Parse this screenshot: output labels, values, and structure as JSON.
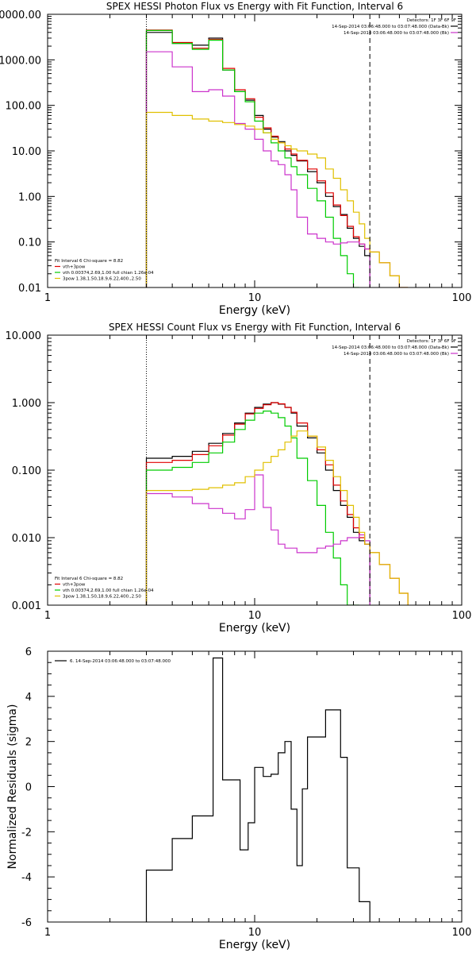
{
  "chart_data": [
    {
      "type": "line",
      "title": "SPEX HESSI Photon Flux vs Energy with Fit Function, Interval 6",
      "xlabel": "Energy (keV)",
      "ylabel": "",
      "xscale": "log",
      "yscale": "log",
      "xlim": [
        1,
        100
      ],
      "ylim": [
        0.01,
        10000
      ],
      "grid": false,
      "xticks": [
        "1",
        "10",
        "100"
      ],
      "yticks": [
        "10000.00",
        "1000.00",
        "100.00",
        "10.00",
        "1.00",
        "0.10",
        "0.01"
      ],
      "vlines": [
        {
          "x": 3.0,
          "style": "dotted"
        },
        {
          "x": 36.0,
          "style": "dashed"
        }
      ],
      "legend_top": {
        "position": "top-right",
        "header": "Detectors: 1F 3F 6F 9F",
        "entries": [
          {
            "text": "14-Sep-2014 03:06:48.000 to 03:07:48.000 (Data-Bk)",
            "color": "#000000"
          },
          {
            "text": "14-Sep-2014 03:06:48.000 to 03:07:48.000 (Bk)",
            "color": "#cc33cc"
          }
        ]
      },
      "legend_bottom": {
        "position": "bottom-left",
        "header": "Fit Interval 6   Chi-square = 8.82",
        "entries": [
          {
            "text": "vth+3pow",
            "color": "#e00000"
          },
          {
            "text": "vth 0.00374,2.69,1.00  full chian 1.26e-04",
            "color": "#00cc00"
          },
          {
            "text": "3pow 1.38,1.50,18.9,6.22,400.,2.50",
            "color": "#e0c000"
          }
        ]
      },
      "series": [
        {
          "color": "#000000",
          "edges": [
            3,
            4,
            5,
            6,
            7,
            8,
            9,
            10,
            11,
            12,
            13,
            14,
            15,
            16,
            18,
            20,
            22,
            24,
            26,
            28,
            30,
            32,
            34,
            36
          ],
          "values": [
            4000,
            2300,
            2100,
            3000,
            600,
            200,
            130,
            60,
            30,
            20,
            16,
            10,
            8,
            6,
            3.5,
            2.0,
            1.0,
            0.6,
            0.4,
            0.2,
            0.12,
            0.08,
            0.05
          ]
        },
        {
          "color": "#e00000",
          "edges": [
            3,
            4,
            5,
            6,
            7,
            8,
            9,
            10,
            11,
            12,
            13,
            14,
            15,
            16,
            18,
            20,
            22,
            24,
            26,
            28,
            30,
            32,
            34,
            36,
            40,
            45,
            50,
            55
          ],
          "values": [
            4500,
            2400,
            1800,
            2800,
            650,
            220,
            140,
            55,
            32,
            21,
            15,
            11,
            8.5,
            6.2,
            4,
            2.2,
            1.2,
            0.65,
            0.38,
            0.22,
            0.13,
            0.09,
            0.07,
            0.06,
            0.035,
            0.018,
            0.01
          ]
        },
        {
          "color": "#00cc00",
          "edges": [
            3,
            4,
            5,
            6,
            7,
            8,
            9,
            10,
            11,
            12,
            13,
            14,
            15,
            16,
            18,
            20,
            22,
            24,
            26,
            28,
            30,
            32
          ],
          "values": [
            4400,
            2300,
            1700,
            2700,
            600,
            200,
            120,
            45,
            25,
            15,
            10,
            7,
            4.5,
            3,
            1.5,
            0.8,
            0.35,
            0.12,
            0.05,
            0.02,
            0.01
          ]
        },
        {
          "color": "#cc33cc",
          "edges": [
            3,
            4,
            5,
            6,
            7,
            8,
            9,
            10,
            11,
            12,
            13,
            14,
            15,
            16,
            18,
            20,
            22,
            24,
            26,
            28,
            30,
            32,
            34,
            36
          ],
          "values": [
            1500,
            700,
            200,
            220,
            160,
            40,
            30,
            18,
            10,
            6,
            5,
            3,
            1.4,
            0.35,
            0.15,
            0.12,
            0.1,
            0.09,
            0.095,
            0.1,
            0.1,
            0.09,
            0.07
          ]
        },
        {
          "color": "#e0c000",
          "edges": [
            3,
            4,
            5,
            6,
            7,
            8,
            9,
            10,
            11,
            12,
            13,
            14,
            15,
            16,
            18,
            20,
            22,
            24,
            26,
            28,
            30,
            32,
            34,
            36,
            40,
            45,
            50,
            55
          ],
          "values": [
            70,
            60,
            50,
            45,
            42,
            38,
            35,
            30,
            25,
            18,
            15,
            13,
            11,
            10,
            8.5,
            7,
            4,
            2.5,
            1.4,
            0.8,
            0.45,
            0.25,
            0.12,
            0.06,
            0.035,
            0.018,
            0.01
          ]
        }
      ]
    },
    {
      "type": "line",
      "title": "SPEX HESSI Count Flux vs Energy with Fit Function, Interval 6",
      "xlabel": "Energy (keV)",
      "ylabel": "",
      "xscale": "log",
      "yscale": "log",
      "xlim": [
        1,
        100
      ],
      "ylim": [
        0.001,
        10
      ],
      "grid": false,
      "xticks": [
        "1",
        "10",
        "100"
      ],
      "yticks": [
        "10.000",
        "1.000",
        "0.100",
        "0.010",
        "0.001"
      ],
      "vlines": [
        {
          "x": 3.0,
          "style": "dotted"
        },
        {
          "x": 36.0,
          "style": "dashed"
        }
      ],
      "legend_top": {
        "position": "top-right",
        "header": "Detectors: 1F 3F 6F 9F",
        "entries": [
          {
            "text": "14-Sep-2014 03:06:48.000 to 03:07:48.000 (Data-Bk)",
            "color": "#000000"
          },
          {
            "text": "14-Sep-2014 03:06:48.000 to 03:07:48.000 (Bk)",
            "color": "#cc33cc"
          }
        ]
      },
      "legend_bottom": {
        "position": "bottom-left",
        "header": "Fit Interval 6   Chi-square = 8.82",
        "entries": [
          {
            "text": "vth+3pow",
            "color": "#e00000"
          },
          {
            "text": "vth 0.00374,2.69,1.00  full chian 1.26e-04",
            "color": "#00cc00"
          },
          {
            "text": "3pow 1.38,1.50,18.9,6.22,400.,2.50",
            "color": "#e0c000"
          }
        ]
      },
      "series": [
        {
          "color": "#000000",
          "edges": [
            3,
            4,
            5,
            6,
            7,
            8,
            9,
            10,
            11,
            12,
            13,
            14,
            15,
            16,
            18,
            20,
            22,
            24,
            26,
            28,
            30,
            32,
            34,
            36
          ],
          "values": [
            0.15,
            0.16,
            0.19,
            0.25,
            0.35,
            0.5,
            0.7,
            0.85,
            0.95,
            1.0,
            0.95,
            0.85,
            0.7,
            0.45,
            0.3,
            0.18,
            0.1,
            0.05,
            0.03,
            0.02,
            0.012,
            0.009,
            0.008
          ]
        },
        {
          "color": "#e00000",
          "edges": [
            3,
            4,
            5,
            6,
            7,
            8,
            9,
            10,
            11,
            12,
            13,
            14,
            15,
            16,
            18,
            20,
            22,
            24,
            26,
            28,
            30,
            32,
            34,
            36,
            40,
            45,
            50,
            55
          ],
          "values": [
            0.13,
            0.14,
            0.17,
            0.23,
            0.33,
            0.48,
            0.68,
            0.82,
            0.93,
            1.0,
            0.96,
            0.85,
            0.72,
            0.5,
            0.32,
            0.2,
            0.12,
            0.06,
            0.035,
            0.022,
            0.014,
            0.01,
            0.008,
            0.006,
            0.004,
            0.0025,
            0.0015
          ]
        },
        {
          "color": "#00cc00",
          "edges": [
            3,
            4,
            5,
            6,
            7,
            8,
            9,
            10,
            11,
            12,
            13,
            14,
            15,
            16,
            18,
            20,
            22,
            24,
            26,
            28,
            30,
            32
          ],
          "values": [
            0.1,
            0.11,
            0.13,
            0.18,
            0.26,
            0.4,
            0.55,
            0.7,
            0.75,
            0.7,
            0.6,
            0.45,
            0.3,
            0.15,
            0.07,
            0.03,
            0.012,
            0.005,
            0.002,
            0.001,
            0.001
          ]
        },
        {
          "color": "#cc33cc",
          "edges": [
            3,
            4,
            5,
            6,
            7,
            8,
            9,
            10,
            11,
            12,
            13,
            14,
            15,
            16,
            18,
            20,
            22,
            24,
            26,
            28,
            30,
            32,
            34,
            36
          ],
          "values": [
            0.045,
            0.04,
            0.032,
            0.027,
            0.023,
            0.019,
            0.026,
            0.085,
            0.028,
            0.013,
            0.008,
            0.007,
            0.007,
            0.006,
            0.006,
            0.007,
            0.0075,
            0.008,
            0.009,
            0.01,
            0.01,
            0.011,
            0.009
          ]
        },
        {
          "color": "#e0c000",
          "edges": [
            3,
            4,
            5,
            6,
            7,
            8,
            9,
            10,
            11,
            12,
            13,
            14,
            15,
            16,
            18,
            20,
            22,
            24,
            26,
            28,
            30,
            32,
            34,
            36,
            40,
            45,
            50,
            55
          ],
          "values": [
            0.05,
            0.05,
            0.052,
            0.055,
            0.06,
            0.065,
            0.08,
            0.1,
            0.13,
            0.16,
            0.2,
            0.26,
            0.32,
            0.38,
            0.32,
            0.22,
            0.14,
            0.08,
            0.05,
            0.03,
            0.02,
            0.012,
            0.008,
            0.006,
            0.004,
            0.0025,
            0.0015
          ]
        }
      ]
    },
    {
      "type": "line",
      "title": "",
      "xlabel": "Energy (keV)",
      "ylabel": "Normalized Residuals (sigma)",
      "xscale": "log",
      "yscale": "linear",
      "xlim": [
        1,
        100
      ],
      "ylim": [
        -6,
        6
      ],
      "grid": false,
      "xticks": [
        "1",
        "10",
        "100"
      ],
      "yticks": [
        "6",
        "4",
        "2",
        "0",
        "-2",
        "-4",
        "-6"
      ],
      "legend_top": {
        "position": "top-left",
        "entries": [
          {
            "text": "6. 14-Sep-2014 03:06:48.000 to 03:07:48.000",
            "color": "#000000"
          }
        ]
      },
      "series": [
        {
          "color": "#000000",
          "edges": [
            3,
            3.5,
            4.0,
            4.5,
            5.0,
            5.5,
            6.3,
            7.0,
            7.5,
            8.5,
            9.3,
            10.0,
            11.0,
            12.0,
            13.0,
            14.0,
            15.0,
            16.0,
            17.0,
            18.0,
            20.0,
            22.0,
            24.0,
            26.0,
            28.0,
            30.0,
            32.0,
            34.0,
            36.0
          ],
          "values": [
            -3.7,
            -3.7,
            -2.3,
            -2.3,
            -1.3,
            -1.3,
            5.7,
            0.3,
            0.3,
            -2.8,
            -1.6,
            0.85,
            0.45,
            0.55,
            1.5,
            2.0,
            -1.0,
            -3.5,
            -0.1,
            2.2,
            2.2,
            3.4,
            3.4,
            1.3,
            -3.6,
            -3.6,
            -5.1,
            -5.1
          ]
        }
      ]
    }
  ]
}
